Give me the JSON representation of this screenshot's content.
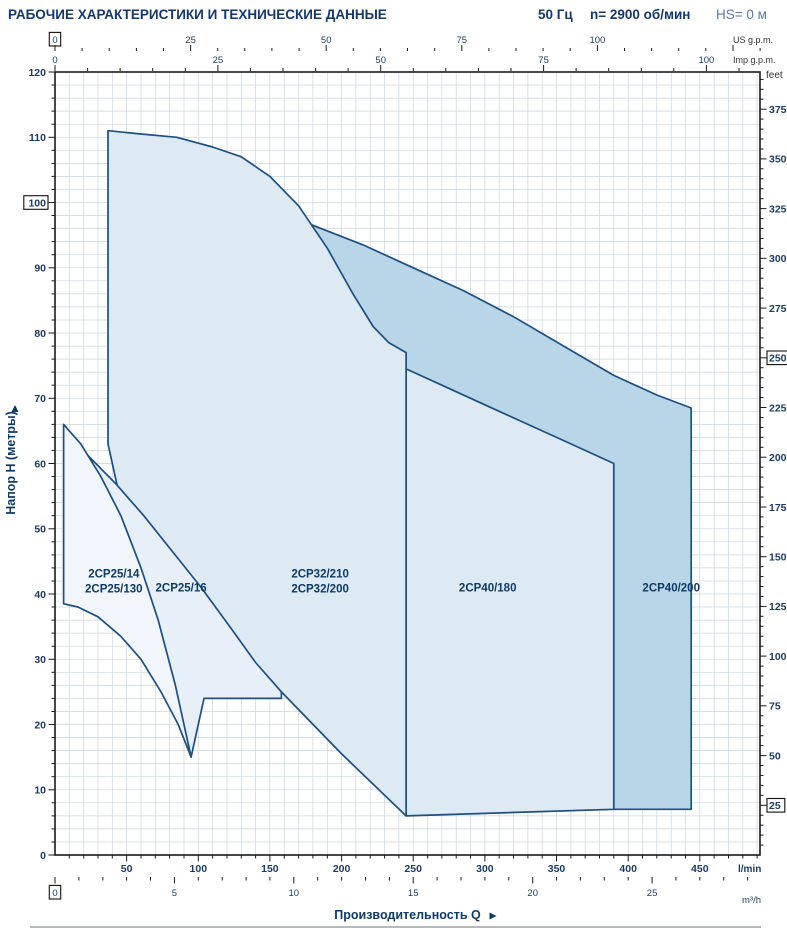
{
  "header": {
    "title": "РАБОЧИЕ ХАРАКТЕРИСТИКИ И ТЕХНИЧЕСКИЕ ДАННЫЕ",
    "freq": "50 Гц",
    "speed": "n= 2900 об/мин",
    "hs": "HS= 0 м"
  },
  "chart_data": {
    "type": "area",
    "title": "",
    "xlabel": "Производительность Q",
    "ylabel": "Напор H (метры)",
    "xlim": [
      0,
      492
    ],
    "ylim": [
      0,
      120
    ],
    "grid": {
      "x_step": 10,
      "y_step": 2
    },
    "style": {
      "stroke": "#1d4f80",
      "grid_color": "#ccd6dd",
      "label_color": "#0e3a66",
      "tick_label_color": "#1a3a5f"
    },
    "axes": {
      "left": {
        "unit": "м",
        "majors": [
          0,
          10,
          20,
          30,
          40,
          50,
          60,
          70,
          80,
          90,
          100,
          110,
          120
        ],
        "minor_step": 2,
        "boxed": [
          100
        ]
      },
      "right": {
        "unit": "feet",
        "majors": [
          25,
          50,
          75,
          100,
          125,
          150,
          175,
          200,
          225,
          250,
          275,
          300,
          325,
          350,
          375
        ],
        "minor_step": 5,
        "boxed": [
          250,
          25
        ],
        "feet_per_m": 3.2808
      },
      "top_us": {
        "unit": "US g.p.m.",
        "majors": [
          0,
          25,
          50,
          75,
          100
        ],
        "minor_step": 5,
        "boxed": [
          0
        ],
        "lmin_per_unit": 3.785
      },
      "top_imp": {
        "unit": "Imp g.p.m.",
        "majors": [
          0,
          25,
          50,
          75,
          100
        ],
        "minor_step": 5,
        "boxed": [],
        "lmin_per_unit": 4.546
      },
      "bottom": {
        "unit": "l/min",
        "majors": [
          50,
          100,
          150,
          200,
          250,
          300,
          350,
          400,
          450
        ],
        "minor_step": 10,
        "boxed": []
      },
      "bottom2": {
        "unit": "m³/h",
        "majors": [
          0,
          5,
          10,
          15,
          20,
          25
        ],
        "minor_step": 1,
        "boxed": [
          0
        ],
        "lmin_per_unit": 16.667
      }
    },
    "regions": [
      {
        "name": "2CP40/200",
        "label_lines": [
          "2CP40/200"
        ],
        "label_pos": [
          430,
          41
        ],
        "fill": "#b9d5e8",
        "points": [
          [
            147,
            99.5
          ],
          [
            180,
            96.5
          ],
          [
            215,
            93.5
          ],
          [
            250,
            90
          ],
          [
            285,
            86.5
          ],
          [
            320,
            82.5
          ],
          [
            355,
            78
          ],
          [
            390,
            73.5
          ],
          [
            420,
            70.5
          ],
          [
            444,
            68.5
          ],
          [
            444,
            7
          ],
          [
            390,
            7
          ]
        ]
      },
      {
        "name": "2CP40/180",
        "label_lines": [
          "2CP40/180"
        ],
        "label_pos": [
          302,
          41
        ],
        "fill": "#ddeaf4",
        "points": [
          [
            245,
            74.5
          ],
          [
            270,
            72
          ],
          [
            300,
            69
          ],
          [
            330,
            66
          ],
          [
            360,
            63
          ],
          [
            390,
            60
          ],
          [
            390,
            7
          ],
          [
            245,
            6
          ]
        ]
      },
      {
        "name": "2CP32/210 2CP32/200",
        "label_lines": [
          "2CP32/210",
          "2CP32/200"
        ],
        "label_pos": [
          185,
          42
        ],
        "fill": "#ddeaf4",
        "points": [
          [
            37,
            63
          ],
          [
            37,
            111
          ],
          [
            60,
            110.5
          ],
          [
            85,
            110
          ],
          [
            110,
            108.5
          ],
          [
            130,
            107
          ],
          [
            150,
            104
          ],
          [
            170,
            99.5
          ],
          [
            190,
            93
          ],
          [
            208,
            86
          ],
          [
            222,
            81
          ],
          [
            233,
            78.5
          ],
          [
            245,
            77
          ],
          [
            245,
            6
          ],
          [
            200,
            15.5
          ],
          [
            158,
            25
          ],
          [
            120,
            34
          ],
          [
            90,
            44
          ],
          [
            62,
            50
          ],
          [
            45,
            55
          ]
        ]
      },
      {
        "name": "2CP25/16",
        "label_lines": [
          "2CP25/16"
        ],
        "label_pos": [
          88,
          41
        ],
        "fill": "#e7f0f8",
        "points": [
          [
            8,
            64.5
          ],
          [
            24,
            61
          ],
          [
            42,
            57
          ],
          [
            62,
            52
          ],
          [
            82,
            46.5
          ],
          [
            102,
            41
          ],
          [
            122,
            35
          ],
          [
            140,
            29.5
          ],
          [
            152,
            26.5
          ],
          [
            158,
            25
          ],
          [
            158,
            24
          ],
          [
            104,
            24
          ],
          [
            95,
            15
          ],
          [
            80,
            27
          ],
          [
            62,
            37
          ],
          [
            44,
            47
          ],
          [
            26,
            56
          ]
        ]
      },
      {
        "name": "2CP25/14 2CP25/130",
        "label_lines": [
          "2CP25/14",
          "2CP25/130"
        ],
        "label_pos": [
          41,
          42
        ],
        "fill": "#f0f6fb",
        "points": [
          [
            6,
            66
          ],
          [
            18,
            63
          ],
          [
            32,
            58
          ],
          [
            46,
            52
          ],
          [
            60,
            44
          ],
          [
            72,
            36
          ],
          [
            84,
            26
          ],
          [
            95,
            15
          ],
          [
            86,
            20
          ],
          [
            74,
            25
          ],
          [
            60,
            30
          ],
          [
            46,
            33.5
          ],
          [
            30,
            36.5
          ],
          [
            16,
            38
          ],
          [
            6,
            38.5
          ]
        ]
      }
    ]
  }
}
